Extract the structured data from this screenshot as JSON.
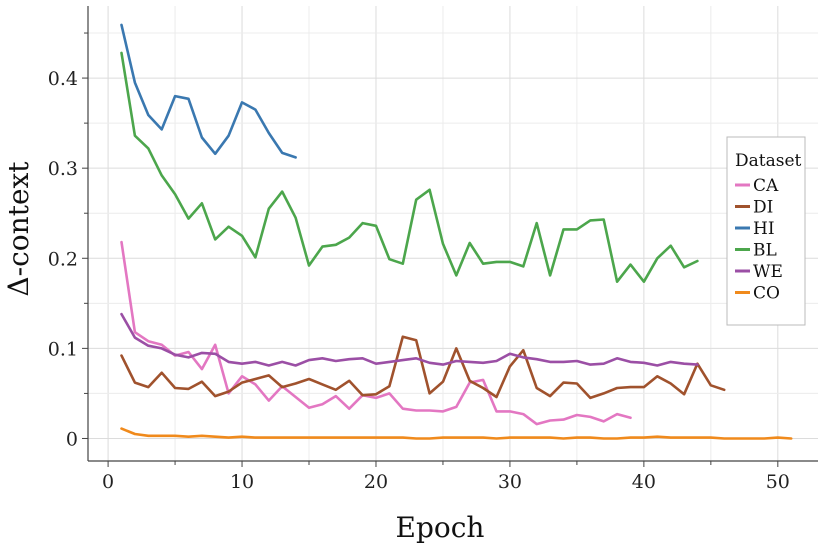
{
  "chart_data": {
    "type": "line",
    "xlabel": "Epoch",
    "ylabel": "Δ-context",
    "xlim": [
      -1.5,
      53
    ],
    "ylim": [
      -0.025,
      0.48
    ],
    "xticks": [
      0,
      10,
      20,
      30,
      40,
      50
    ],
    "yticks": [
      0,
      0.1,
      0.2,
      0.3,
      0.4
    ],
    "ytick_labels": [
      "0",
      "0.1",
      "0.2",
      "0.3",
      "0.4"
    ],
    "grid": true,
    "legend": {
      "title": "Dataset",
      "placement": "right"
    },
    "series": [
      {
        "name": "CA",
        "color": "#e377c2",
        "x": [
          1,
          2,
          3,
          4,
          5,
          6,
          7,
          8,
          9,
          10,
          11,
          12,
          13,
          14,
          15,
          16,
          17,
          18,
          19,
          20,
          21,
          22,
          23,
          24,
          25,
          26,
          27,
          28,
          29,
          30,
          31,
          32,
          33,
          34,
          35,
          36,
          37,
          38,
          39
        ],
        "y": [
          0.218,
          0.118,
          0.108,
          0.104,
          0.092,
          0.096,
          0.077,
          0.104,
          0.05,
          0.069,
          0.06,
          0.042,
          0.058,
          0.046,
          0.034,
          0.038,
          0.047,
          0.033,
          0.048,
          0.045,
          0.05,
          0.033,
          0.031,
          0.031,
          0.03,
          0.035,
          0.062,
          0.065,
          0.03,
          0.03,
          0.027,
          0.016,
          0.02,
          0.021,
          0.026,
          0.024,
          0.019,
          0.027,
          0.023
        ]
      },
      {
        "name": "DI",
        "color": "#a0522d",
        "x": [
          1,
          2,
          3,
          4,
          5,
          6,
          7,
          8,
          9,
          10,
          11,
          12,
          13,
          14,
          15,
          16,
          17,
          18,
          19,
          20,
          21,
          22,
          23,
          24,
          25,
          26,
          27,
          28,
          29,
          30,
          31,
          32,
          33,
          34,
          35,
          36,
          37,
          38,
          39,
          40,
          41,
          42,
          43,
          44,
          45,
          46
        ],
        "y": [
          0.092,
          0.062,
          0.057,
          0.073,
          0.056,
          0.055,
          0.063,
          0.047,
          0.052,
          0.062,
          0.066,
          0.07,
          0.057,
          0.061,
          0.066,
          0.06,
          0.054,
          0.064,
          0.048,
          0.049,
          0.058,
          0.113,
          0.109,
          0.05,
          0.063,
          0.1,
          0.064,
          0.056,
          0.046,
          0.08,
          0.098,
          0.056,
          0.047,
          0.062,
          0.061,
          0.045,
          0.05,
          0.056,
          0.057,
          0.057,
          0.069,
          0.061,
          0.049,
          0.083,
          0.059,
          0.054
        ]
      },
      {
        "name": "HI",
        "color": "#3a78b0",
        "x": [
          1,
          2,
          3,
          4,
          5,
          6,
          7,
          8,
          9,
          10,
          11,
          12,
          13,
          14
        ],
        "y": [
          0.459,
          0.395,
          0.359,
          0.343,
          0.38,
          0.377,
          0.334,
          0.316,
          0.336,
          0.373,
          0.365,
          0.339,
          0.317,
          0.312
        ]
      },
      {
        "name": "BL",
        "color": "#4ca64c",
        "x": [
          1,
          2,
          3,
          4,
          5,
          6,
          7,
          8,
          9,
          10,
          11,
          12,
          13,
          14,
          15,
          16,
          17,
          18,
          19,
          20,
          21,
          22,
          23,
          24,
          25,
          26,
          27,
          28,
          29,
          30,
          31,
          32,
          33,
          34,
          35,
          36,
          37,
          38,
          39,
          40,
          41,
          42,
          43,
          44
        ],
        "y": [
          0.428,
          0.336,
          0.322,
          0.292,
          0.271,
          0.244,
          0.261,
          0.221,
          0.235,
          0.225,
          0.201,
          0.255,
          0.274,
          0.245,
          0.192,
          0.213,
          0.215,
          0.223,
          0.239,
          0.236,
          0.199,
          0.194,
          0.265,
          0.276,
          0.216,
          0.181,
          0.217,
          0.194,
          0.196,
          0.196,
          0.191,
          0.239,
          0.181,
          0.232,
          0.232,
          0.242,
          0.243,
          0.174,
          0.193,
          0.174,
          0.2,
          0.214,
          0.19,
          0.197
        ]
      },
      {
        "name": "WE",
        "color": "#9b4fa5",
        "x": [
          1,
          2,
          3,
          4,
          5,
          6,
          7,
          8,
          9,
          10,
          11,
          12,
          13,
          14,
          15,
          16,
          17,
          18,
          19,
          20,
          21,
          22,
          23,
          24,
          25,
          26,
          27,
          28,
          29,
          30,
          31,
          32,
          33,
          34,
          35,
          36,
          37,
          38,
          39,
          40,
          41,
          42,
          43,
          44
        ],
        "y": [
          0.138,
          0.112,
          0.103,
          0.1,
          0.093,
          0.09,
          0.095,
          0.094,
          0.085,
          0.083,
          0.085,
          0.081,
          0.085,
          0.081,
          0.087,
          0.089,
          0.086,
          0.088,
          0.089,
          0.083,
          0.085,
          0.087,
          0.089,
          0.084,
          0.082,
          0.086,
          0.085,
          0.084,
          0.086,
          0.094,
          0.09,
          0.088,
          0.085,
          0.085,
          0.086,
          0.082,
          0.083,
          0.089,
          0.085,
          0.084,
          0.081,
          0.085,
          0.083,
          0.082
        ]
      },
      {
        "name": "CO",
        "color": "#f08a1c",
        "x": [
          1,
          2,
          3,
          4,
          5,
          6,
          7,
          8,
          9,
          10,
          11,
          12,
          13,
          14,
          15,
          16,
          17,
          18,
          19,
          20,
          21,
          22,
          23,
          24,
          25,
          26,
          27,
          28,
          29,
          30,
          31,
          32,
          33,
          34,
          35,
          36,
          37,
          38,
          39,
          40,
          41,
          42,
          43,
          44,
          45,
          46,
          47,
          48,
          49,
          50,
          51
        ],
        "y": [
          0.011,
          0.005,
          0.003,
          0.003,
          0.003,
          0.002,
          0.003,
          0.002,
          0.001,
          0.002,
          0.001,
          0.001,
          0.001,
          0.001,
          0.001,
          0.001,
          0.001,
          0.001,
          0.001,
          0.001,
          0.001,
          0.001,
          0.0,
          0.0,
          0.001,
          0.001,
          0.001,
          0.001,
          0.0,
          0.001,
          0.001,
          0.001,
          0.001,
          0.0,
          0.001,
          0.001,
          0.0,
          0.0,
          0.001,
          0.001,
          0.002,
          0.001,
          0.001,
          0.001,
          0.001,
          0.0,
          0.0,
          0.0,
          0.0,
          0.001,
          0.0
        ]
      }
    ]
  }
}
